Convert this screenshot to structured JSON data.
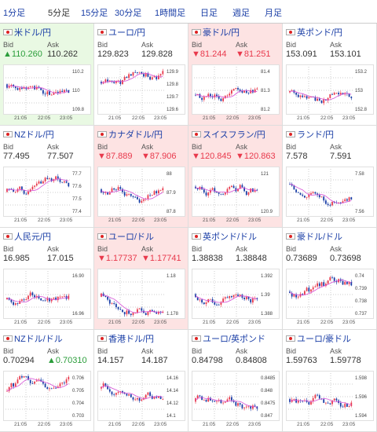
{
  "tabs": [
    "1分足",
    "5分足",
    "15分足",
    "30分足",
    "1時間足",
    "日足",
    "週足",
    "月足"
  ],
  "active_tab": 1,
  "labels": {
    "bid": "Bid",
    "ask": "Ask"
  },
  "panels": [
    {
      "name": "米ドル/円",
      "bid": "▲110.260",
      "ask": "110.262",
      "bid_dir": "up",
      "ask_dir": "",
      "bg": "green",
      "y_ticks": [
        "110.2",
        "110",
        "109.8"
      ],
      "x_ticks": [
        "21:05",
        "22:05",
        "23:05"
      ]
    },
    {
      "name": "ユーロ/円",
      "bid": "129.823",
      "ask": "129.828",
      "bid_dir": "",
      "ask_dir": "",
      "bg": "",
      "y_ticks": [
        "129.9",
        "129.8",
        "129.7",
        "129.6"
      ],
      "x_ticks": [
        "21:05",
        "22:05",
        "23:05"
      ]
    },
    {
      "name": "豪ドル/円",
      "bid": "▼81.244",
      "ask": "▼81.251",
      "bid_dir": "down",
      "ask_dir": "down",
      "bg": "red",
      "y_ticks": [
        "81.4",
        "81.3",
        "81.2"
      ],
      "x_ticks": [
        "21:05",
        "22:05",
        "23:05"
      ]
    },
    {
      "name": "英ポンド/円",
      "bid": "153.091",
      "ask": "153.101",
      "bid_dir": "",
      "ask_dir": "",
      "bg": "",
      "y_ticks": [
        "153.2",
        "153",
        "152.8"
      ],
      "x_ticks": [
        "21:05",
        "22:05",
        "23:05"
      ]
    },
    {
      "name": "NZドル/円",
      "bid": "77.495",
      "ask": "77.507",
      "bid_dir": "",
      "ask_dir": "",
      "bg": "",
      "y_ticks": [
        "77.7",
        "77.6",
        "77.5",
        "77.4"
      ],
      "x_ticks": [
        "21:05",
        "22:05",
        "23:05"
      ]
    },
    {
      "name": "カナダドル/円",
      "bid": "▼87.889",
      "ask": "▼87.906",
      "bid_dir": "down",
      "ask_dir": "down",
      "bg": "red",
      "y_ticks": [
        "88",
        "87.9",
        "87.8"
      ],
      "x_ticks": [
        "21:05",
        "22:05",
        "23:05"
      ]
    },
    {
      "name": "スイスフラン/円",
      "bid": "▼120.845",
      "ask": "▼120.863",
      "bid_dir": "down",
      "ask_dir": "down",
      "bg": "red",
      "y_ticks": [
        "121",
        "120.9"
      ],
      "x_ticks": [
        "21:05",
        "22:05",
        "23:05"
      ]
    },
    {
      "name": "ランド/円",
      "bid": "7.578",
      "ask": "7.591",
      "bid_dir": "",
      "ask_dir": "",
      "bg": "",
      "y_ticks": [
        "7.58",
        "7.56"
      ],
      "x_ticks": [
        "21:05",
        "22:05",
        "23:05"
      ]
    },
    {
      "name": "人民元/円",
      "bid": "16.985",
      "ask": "17.015",
      "bid_dir": "",
      "ask_dir": "",
      "bg": "",
      "y_ticks": [
        "16.90",
        "16.96"
      ],
      "x_ticks": [
        "21:05",
        "22:05",
        "23:05"
      ]
    },
    {
      "name": "ユーロ/ドル",
      "bid": "▼1.17737",
      "ask": "▼1.17741",
      "bid_dir": "down",
      "ask_dir": "down",
      "bg": "red",
      "y_ticks": [
        "1.18",
        "1.178"
      ],
      "x_ticks": [
        "21:05",
        "22:05",
        "23:05"
      ]
    },
    {
      "name": "英ポンド/ドル",
      "bid": "1.38838",
      "ask": "1.38848",
      "bid_dir": "",
      "ask_dir": "",
      "bg": "",
      "y_ticks": [
        "1.392",
        "1.39",
        "1.388"
      ],
      "x_ticks": [
        "21:05",
        "22:05",
        "23:05"
      ]
    },
    {
      "name": "豪ドル/ドル",
      "bid": "0.73689",
      "ask": "0.73698",
      "bid_dir": "",
      "ask_dir": "",
      "bg": "",
      "y_ticks": [
        "0.74",
        "0.739",
        "0.738",
        "0.737"
      ],
      "x_ticks": [
        "21:05",
        "22:05",
        "23:05"
      ]
    },
    {
      "name": "NZドル/ドル",
      "bid": "0.70294",
      "ask": "▲0.70310",
      "bid_dir": "",
      "ask_dir": "up",
      "bg": "",
      "y_ticks": [
        "0.706",
        "0.705",
        "0.704",
        "0.703"
      ],
      "x_ticks": [
        "21:05",
        "22:05",
        "23:05"
      ]
    },
    {
      "name": "香港ドル/円",
      "bid": "14.157",
      "ask": "14.187",
      "bid_dir": "",
      "ask_dir": "",
      "bg": "",
      "y_ticks": [
        "14.16",
        "14.14",
        "14.12",
        "14.1"
      ],
      "x_ticks": [
        "21:05",
        "22:05",
        "23:05"
      ]
    },
    {
      "name": "ユーロ/英ポンド",
      "bid": "0.84798",
      "ask": "0.84808",
      "bid_dir": "",
      "ask_dir": "",
      "bg": "",
      "y_ticks": [
        "0.8485",
        "0.848",
        "0.8475",
        "0.847"
      ],
      "x_ticks": [
        "21:05",
        "22:05",
        "23:05"
      ]
    },
    {
      "name": "ユーロ/豪ドル",
      "bid": "1.59763",
      "ask": "1.59778",
      "bid_dir": "",
      "ask_dir": "",
      "bg": "",
      "y_ticks": [
        "1.598",
        "1.596",
        "1.594"
      ],
      "x_ticks": [
        "21:05",
        "22:05",
        "23:05"
      ]
    }
  ],
  "colors": {
    "up": "#2a9d3a",
    "down": "#e8394c",
    "link": "#1a3ea6",
    "candle_up": "#e8394c",
    "candle_down": "#1a3ea6",
    "ma": "#d64fd6"
  }
}
